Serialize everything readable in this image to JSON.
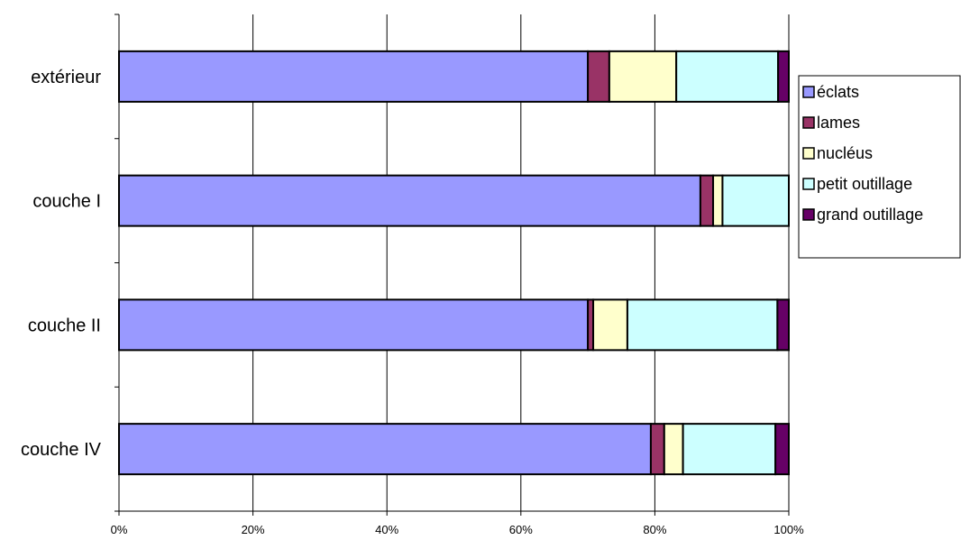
{
  "chart_data": {
    "type": "bar",
    "orientation": "horizontal",
    "stacked": "percent",
    "categories": [
      "extérieur",
      "couche I",
      "couche II",
      "couche IV"
    ],
    "series": [
      {
        "name": "éclats",
        "color": "#9999ff",
        "values": [
          70.0,
          86.8,
          70.0,
          79.4
        ]
      },
      {
        "name": "lames",
        "color": "#993366",
        "values": [
          3.2,
          1.9,
          0.8,
          2.0
        ]
      },
      {
        "name": "nucléus",
        "color": "#ffffcc",
        "values": [
          10.0,
          1.4,
          5.1,
          2.8
        ]
      },
      {
        "name": "petit outillage",
        "color": "#ccffff",
        "values": [
          15.2,
          9.9,
          22.4,
          13.8
        ]
      },
      {
        "name": "grand outillage",
        "color": "#660066",
        "values": [
          1.6,
          0.0,
          1.7,
          2.0
        ]
      }
    ],
    "x_ticks": [
      "0%",
      "20%",
      "40%",
      "60%",
      "80%",
      "100%"
    ],
    "xlim": [
      0,
      100
    ],
    "grid": "vertical",
    "legend_position": "right"
  }
}
